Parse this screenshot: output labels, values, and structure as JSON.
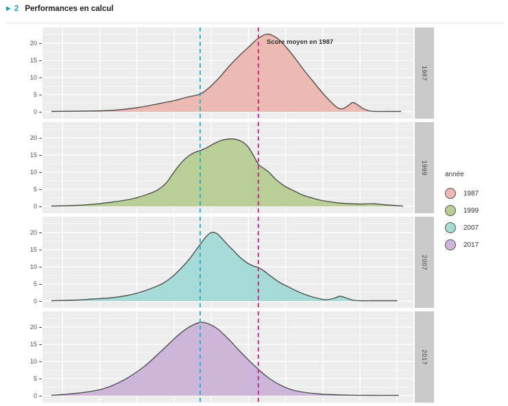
{
  "header": {
    "marker": "▶",
    "section_number": "2",
    "title": "Performances en calcul"
  },
  "chart_data": {
    "type": "area",
    "subtype": "faceted-density",
    "title": "Performances en calcul",
    "yticks": [
      0,
      5,
      10,
      15,
      20
    ],
    "ylim": [
      0,
      24.6
    ],
    "grid": "on",
    "legend_position": "right",
    "annotation": {
      "text": "Score moyen en 1987",
      "facet": "1987",
      "x_frac": 0.605
    },
    "vlines": [
      {
        "name": "reference-line-teal",
        "x_frac": 0.425,
        "color": "#29b5c8",
        "style": "dashed"
      },
      {
        "name": "reference-line-magenta",
        "x_frac": 0.582,
        "color": "#c2308a",
        "style": "dashed",
        "label": "Score moyen en 1987"
      }
    ],
    "stroke_color": "#4f4f4f",
    "facets": [
      {
        "label": "1987",
        "color": "#ecbab2",
        "points": [
          [
            0.024,
            0.1
          ],
          [
            0.107,
            0.2
          ],
          [
            0.163,
            0.3
          ],
          [
            0.209,
            0.6
          ],
          [
            0.255,
            1.2
          ],
          [
            0.292,
            1.9
          ],
          [
            0.329,
            2.7
          ],
          [
            0.357,
            3.3
          ],
          [
            0.384,
            4.1
          ],
          [
            0.425,
            5.2
          ],
          [
            0.449,
            7.0
          ],
          [
            0.477,
            10.0
          ],
          [
            0.505,
            13.5
          ],
          [
            0.532,
            16.5
          ],
          [
            0.555,
            18.8
          ],
          [
            0.579,
            21.2
          ],
          [
            0.603,
            22.6
          ],
          [
            0.621,
            22.2
          ],
          [
            0.64,
            20.8
          ],
          [
            0.662,
            18.2
          ],
          [
            0.684,
            15.2
          ],
          [
            0.706,
            12.0
          ],
          [
            0.727,
            9.2
          ],
          [
            0.745,
            6.8
          ],
          [
            0.76,
            4.9
          ],
          [
            0.773,
            3.4
          ],
          [
            0.786,
            2.0
          ],
          [
            0.797,
            1.1
          ],
          [
            0.81,
            0.9
          ],
          [
            0.824,
            1.8
          ],
          [
            0.837,
            2.7
          ],
          [
            0.85,
            2.0
          ],
          [
            0.865,
            0.9
          ],
          [
            0.88,
            0.3
          ],
          [
            0.898,
            0.1
          ],
          [
            0.93,
            0.1
          ],
          [
            0.967,
            0.1
          ]
        ]
      },
      {
        "label": "1999",
        "color": "#b9cf97",
        "points": [
          [
            0.024,
            0.1
          ],
          [
            0.089,
            0.3
          ],
          [
            0.144,
            0.7
          ],
          [
            0.19,
            1.3
          ],
          [
            0.237,
            2.1
          ],
          [
            0.274,
            3.2
          ],
          [
            0.307,
            4.6
          ],
          [
            0.333,
            6.8
          ],
          [
            0.351,
            9.5
          ],
          [
            0.37,
            12.2
          ],
          [
            0.388,
            14.2
          ],
          [
            0.407,
            15.6
          ],
          [
            0.425,
            16.3
          ],
          [
            0.444,
            17.2
          ],
          [
            0.462,
            18.3
          ],
          [
            0.484,
            19.3
          ],
          [
            0.51,
            19.7
          ],
          [
            0.532,
            19.2
          ],
          [
            0.551,
            17.8
          ],
          [
            0.566,
            15.4
          ],
          [
            0.582,
            12.3
          ],
          [
            0.595,
            11.2
          ],
          [
            0.61,
            10.0
          ],
          [
            0.63,
            7.8
          ],
          [
            0.652,
            6.0
          ],
          [
            0.677,
            4.6
          ],
          [
            0.702,
            3.3
          ],
          [
            0.727,
            2.5
          ],
          [
            0.75,
            1.8
          ],
          [
            0.773,
            1.4
          ],
          [
            0.8,
            1.0
          ],
          [
            0.828,
            0.8
          ],
          [
            0.861,
            0.7
          ],
          [
            0.893,
            0.8
          ],
          [
            0.92,
            0.5
          ],
          [
            0.948,
            0.3
          ],
          [
            0.972,
            0.1
          ]
        ]
      },
      {
        "label": "2007",
        "color": "#a6dbd8",
        "points": [
          [
            0.024,
            0.1
          ],
          [
            0.089,
            0.3
          ],
          [
            0.135,
            0.6
          ],
          [
            0.181,
            0.9
          ],
          [
            0.227,
            1.6
          ],
          [
            0.264,
            2.6
          ],
          [
            0.296,
            3.8
          ],
          [
            0.325,
            5.2
          ],
          [
            0.351,
            7.2
          ],
          [
            0.373,
            9.5
          ],
          [
            0.394,
            12.0
          ],
          [
            0.412,
            14.6
          ],
          [
            0.427,
            16.8
          ],
          [
            0.442,
            18.9
          ],
          [
            0.455,
            20.0
          ],
          [
            0.47,
            19.7
          ],
          [
            0.486,
            18.0
          ],
          [
            0.501,
            16.2
          ],
          [
            0.516,
            14.6
          ],
          [
            0.532,
            12.8
          ],
          [
            0.551,
            11.2
          ],
          [
            0.569,
            10.2
          ],
          [
            0.582,
            9.8
          ],
          [
            0.597,
            8.8
          ],
          [
            0.616,
            7.2
          ],
          [
            0.64,
            5.4
          ],
          [
            0.662,
            4.2
          ],
          [
            0.684,
            3.0
          ],
          [
            0.706,
            2.0
          ],
          [
            0.728,
            1.2
          ],
          [
            0.75,
            0.6
          ],
          [
            0.767,
            0.4
          ],
          [
            0.786,
            0.8
          ],
          [
            0.802,
            1.4
          ],
          [
            0.819,
            0.9
          ],
          [
            0.836,
            0.3
          ],
          [
            0.856,
            0.1
          ],
          [
            0.893,
            0.1
          ],
          [
            0.957,
            0.1
          ]
        ]
      },
      {
        "label": "2017",
        "color": "#cdb6da",
        "points": [
          [
            0.024,
            0.1
          ],
          [
            0.1,
            0.8
          ],
          [
            0.163,
            2.0
          ],
          [
            0.218,
            4.5
          ],
          [
            0.274,
            8.5
          ],
          [
            0.32,
            13.0
          ],
          [
            0.357,
            16.8
          ],
          [
            0.384,
            19.2
          ],
          [
            0.407,
            20.7
          ],
          [
            0.427,
            21.4
          ],
          [
            0.449,
            20.9
          ],
          [
            0.473,
            19.4
          ],
          [
            0.499,
            16.8
          ],
          [
            0.532,
            13.0
          ],
          [
            0.569,
            9.0
          ],
          [
            0.606,
            5.5
          ],
          [
            0.643,
            3.0
          ],
          [
            0.68,
            1.5
          ],
          [
            0.736,
            0.6
          ],
          [
            0.81,
            0.2
          ],
          [
            0.883,
            0.1
          ],
          [
            0.96,
            0.1
          ]
        ]
      }
    ],
    "legend": {
      "title": "année",
      "entries": [
        {
          "label": "1987",
          "color": "#ecbab2"
        },
        {
          "label": "1999",
          "color": "#b9cf97"
        },
        {
          "label": "2007",
          "color": "#a6dbd8"
        },
        {
          "label": "2017",
          "color": "#cdb6da"
        }
      ]
    }
  }
}
